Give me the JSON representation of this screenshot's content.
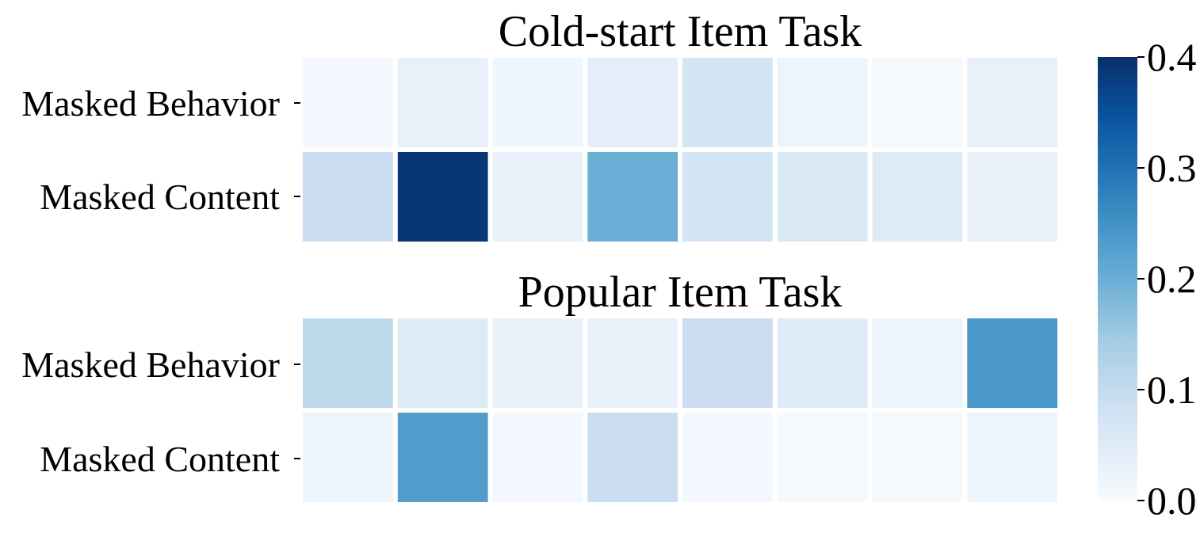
{
  "chart_data": {
    "type": "heatmap",
    "panels": [
      {
        "title": "Cold-start Item Task",
        "rows": [
          "Masked Behavior",
          "Masked Content"
        ],
        "values": [
          [
            0.01,
            0.03,
            0.015,
            0.04,
            0.07,
            0.02,
            0.005,
            0.03
          ],
          [
            0.09,
            0.39,
            0.03,
            0.2,
            0.07,
            0.06,
            0.05,
            0.03
          ]
        ]
      },
      {
        "title": "Popular Item Task",
        "rows": [
          "Masked Behavior",
          "Masked Content"
        ],
        "values": [
          [
            0.11,
            0.05,
            0.03,
            0.03,
            0.09,
            0.05,
            0.02,
            0.24
          ],
          [
            0.02,
            0.23,
            0.01,
            0.09,
            0.01,
            0.005,
            0.005,
            0.02
          ]
        ]
      }
    ],
    "colorbar": {
      "min": 0.0,
      "max": 0.4,
      "ticks": [
        "0.0",
        "0.1",
        "0.2",
        "0.3",
        "0.4"
      ],
      "colormap": "Blues"
    }
  }
}
